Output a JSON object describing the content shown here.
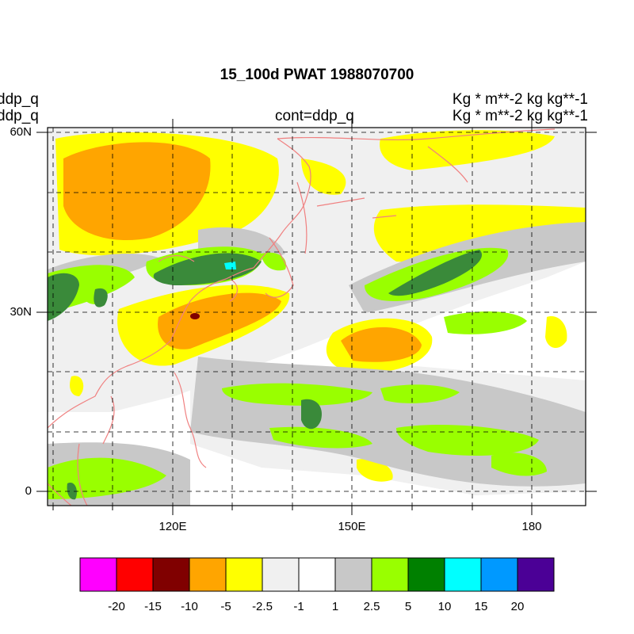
{
  "title": "15_100d PWAT  1988070700",
  "left_labels": [
    "ddp_q",
    "ddp_q"
  ],
  "right_labels": [
    "Kg  * m**-2 kg kg**-1",
    "Kg  * m**-2 kg kg**-1"
  ],
  "center_label": "cont=ddp_q",
  "lat_labels": [
    "60N",
    "30N",
    "0"
  ],
  "lon_labels": [
    "120E",
    "150E",
    "180"
  ],
  "colorbar": {
    "colors": [
      "#ff00ff",
      "#ff0000",
      "#800000",
      "#ffa500",
      "#ffff00",
      "#f0f0f0",
      "#ffffff",
      "#c8c8c8",
      "#99ff00",
      "#008000",
      "#00ffff",
      "#0099ff",
      "#4b0096"
    ],
    "labels": [
      "-20",
      "-15",
      "-10",
      "-5",
      "-2.5",
      "-1",
      "1",
      "2.5",
      "5",
      "10",
      "15",
      "20"
    ]
  },
  "map_colors": {
    "coastline": "#f08080",
    "grid": "#000000"
  }
}
